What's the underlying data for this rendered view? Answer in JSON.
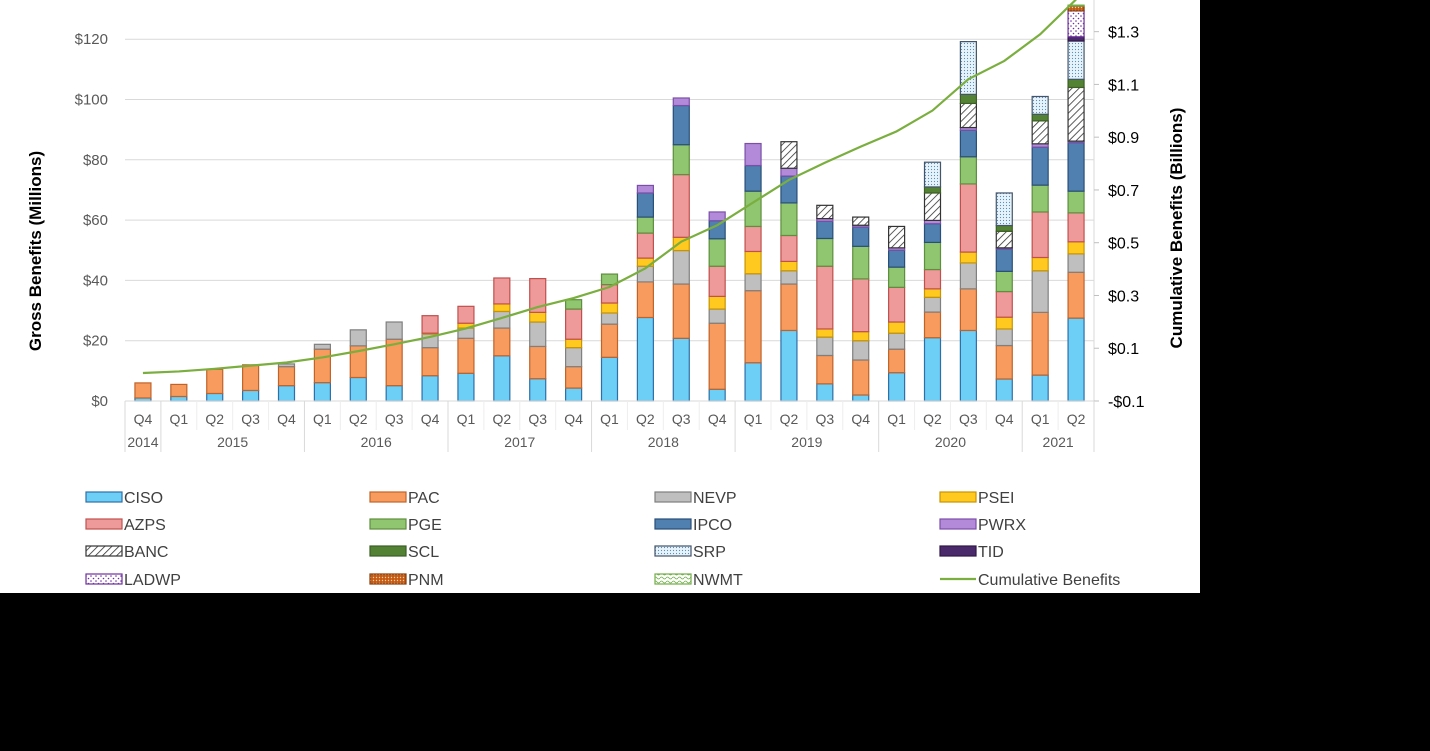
{
  "chart_data": {
    "type": "bar",
    "stacked": true,
    "ylabel": "Gross Benefits (Millions)",
    "y2label": "Cumulative Benefits (Billions)",
    "ylim": [
      0,
      133
    ],
    "y2lim": [
      -0.1,
      1.42
    ],
    "yticks": [
      0,
      20,
      40,
      60,
      80,
      100,
      120
    ],
    "ytick_labels": [
      "$0",
      "$20",
      "$40",
      "$60",
      "$80",
      "$100",
      "$120"
    ],
    "y2ticks": [
      -0.1,
      0.1,
      0.3,
      0.5,
      0.7,
      0.9,
      1.1,
      1.3
    ],
    "y2tick_labels": [
      "-$0.1",
      "$0.1",
      "$0.3",
      "$0.5",
      "$0.7",
      "$0.9",
      "$1.1",
      "$1.3"
    ],
    "grid": true,
    "legend_placement": "bottom",
    "categories": [
      "Q4",
      "Q1",
      "Q2",
      "Q3",
      "Q4",
      "Q1",
      "Q2",
      "Q3",
      "Q4",
      "Q1",
      "Q2",
      "Q3",
      "Q4",
      "Q1",
      "Q2",
      "Q3",
      "Q4",
      "Q1",
      "Q2",
      "Q3",
      "Q4",
      "Q1",
      "Q2",
      "Q3",
      "Q4",
      "Q1",
      "Q2"
    ],
    "year_groups": [
      {
        "label": "2014",
        "count": 1
      },
      {
        "label": "2015",
        "count": 4
      },
      {
        "label": "2016",
        "count": 4
      },
      {
        "label": "2017",
        "count": 4
      },
      {
        "label": "2018",
        "count": 4
      },
      {
        "label": "2019",
        "count": 4
      },
      {
        "label": "2020",
        "count": 4
      },
      {
        "label": "2021",
        "count": 2
      }
    ],
    "series": [
      {
        "name": "CISO",
        "color": "#6DCFF6",
        "stroke": "#2F6FA8",
        "pattern": "solid",
        "values": [
          1,
          1.5,
          2.5,
          3.5,
          5.1,
          6.1,
          7.8,
          5.1,
          8.4,
          9.2,
          15,
          7.4,
          4.3,
          14.5,
          27.7,
          20.8,
          3.9,
          12.7,
          23.4,
          5.7,
          2,
          9.4,
          21,
          23.4,
          7.3,
          8.6,
          27.5
        ]
      },
      {
        "name": "PAC",
        "color": "#F79B5E",
        "stroke": "#C0632A",
        "pattern": "solid",
        "values": [
          5,
          4,
          8,
          8.5,
          6.3,
          11.1,
          10.5,
          15.4,
          9.3,
          11.6,
          9.2,
          10.7,
          7.1,
          11,
          11.8,
          18,
          21.9,
          23.9,
          15.4,
          9.4,
          11.6,
          7.8,
          8.5,
          13.8,
          11.1,
          20.8,
          15.2
        ]
      },
      {
        "name": "NEVP",
        "color": "#BFBFBF",
        "stroke": "#7F7F7F",
        "pattern": "solid",
        "values": [
          0,
          0,
          0,
          0,
          0.9,
          1.6,
          5.3,
          5.7,
          4.5,
          3.4,
          5.5,
          8.1,
          6.3,
          3.7,
          5.2,
          11.1,
          4.7,
          5.6,
          4.4,
          6.1,
          6.4,
          5.3,
          4.9,
          8.6,
          5.5,
          13.8,
          6.1
        ]
      },
      {
        "name": "PSEI",
        "color": "#FFC91F",
        "stroke": "#C89400",
        "pattern": "solid",
        "values": [
          0,
          0,
          0,
          0,
          0,
          0,
          0,
          0,
          0.3,
          1.6,
          2.5,
          3.2,
          2.8,
          3.3,
          2.7,
          4.4,
          4.2,
          7.4,
          3.1,
          2.7,
          3,
          3.7,
          2.8,
          3.6,
          3.9,
          4.4,
          4
        ]
      },
      {
        "name": "AZPS",
        "color": "#EE9A9A",
        "stroke": "#C0504D",
        "pattern": "solid",
        "values": [
          0,
          0,
          0,
          0,
          0,
          0,
          0,
          0,
          5.8,
          5.6,
          8.6,
          11.2,
          10,
          6.1,
          8.3,
          20.8,
          10,
          8.3,
          8.6,
          20.8,
          17.5,
          11.5,
          6.4,
          22.6,
          8.5,
          15.1,
          9.6
        ]
      },
      {
        "name": "PGE",
        "color": "#8FC66F",
        "stroke": "#5E8E3E",
        "pattern": "solid",
        "values": [
          0,
          0,
          0,
          0,
          0,
          0,
          0,
          0,
          0,
          0,
          0,
          0,
          3.1,
          3.5,
          5.3,
          9.9,
          9.1,
          11.7,
          10.8,
          9.2,
          10.8,
          6.7,
          9,
          9,
          6.7,
          8.9,
          7.2
        ]
      },
      {
        "name": "IPCO",
        "color": "#4F80B0",
        "stroke": "#2A4E78",
        "pattern": "solid",
        "values": [
          0,
          0,
          0,
          0,
          0,
          0,
          0,
          0,
          0,
          0,
          0,
          0,
          0,
          0,
          8,
          13,
          6,
          8.5,
          8.9,
          5.7,
          6.4,
          5.6,
          6.2,
          8.8,
          7.4,
          12.6,
          16.1
        ]
      },
      {
        "name": "PWRX",
        "color": "#B38AD9",
        "stroke": "#7B4FA8",
        "pattern": "solid",
        "values": [
          0,
          0,
          0,
          0,
          0,
          0,
          0,
          0,
          0,
          0,
          0,
          0,
          0,
          0,
          2.5,
          2.5,
          2.9,
          7.3,
          2.6,
          0.9,
          0.6,
          0.8,
          1.1,
          0.9,
          0.4,
          1.1,
          0.5
        ]
      },
      {
        "name": "BANC",
        "color": "#FFFFFF",
        "stroke": "#333333",
        "pattern": "hatch",
        "values": [
          0,
          0,
          0,
          0,
          0,
          0,
          0,
          0,
          0,
          0,
          0,
          0,
          0,
          0,
          0,
          0,
          0,
          0,
          8.8,
          4.4,
          2.7,
          7.1,
          9.1,
          8,
          5.5,
          7.6,
          17.8
        ]
      },
      {
        "name": "SCL",
        "color": "#548235",
        "stroke": "#3B5E24",
        "pattern": "solid",
        "values": [
          0,
          0,
          0,
          0,
          0,
          0,
          0,
          0,
          0,
          0,
          0,
          0,
          0,
          0,
          0,
          0,
          0,
          0,
          0,
          0,
          0,
          0,
          2,
          3,
          1.9,
          2.2,
          2.7
        ]
      },
      {
        "name": "SRP",
        "color": "#DDEFF8",
        "stroke": "#44546A",
        "pattern": "dots",
        "values": [
          0,
          0,
          0,
          0,
          0,
          0,
          0,
          0,
          0,
          0,
          0,
          0,
          0,
          0,
          0,
          0,
          0,
          0,
          0,
          0,
          0,
          0,
          8.2,
          17.5,
          10.8,
          5.9,
          12.7
        ]
      },
      {
        "name": "TID",
        "color": "#4B2A6B",
        "stroke": "#2E1846",
        "pattern": "solid",
        "values": [
          0,
          0,
          0,
          0,
          0,
          0,
          0,
          0,
          0,
          0,
          0,
          0,
          0,
          0,
          0,
          0,
          0,
          0,
          0,
          0,
          0,
          0,
          0,
          0,
          0,
          0,
          1.4
        ]
      },
      {
        "name": "LADWP",
        "color": "#FFFFFF",
        "stroke": "#7030A0",
        "pattern": "purpledots",
        "values": [
          0,
          0,
          0,
          0,
          0,
          0,
          0,
          0,
          0,
          0,
          0,
          0,
          0,
          0,
          0,
          0,
          0,
          0,
          0,
          0,
          0,
          0,
          0,
          0,
          0,
          0,
          8.6
        ]
      },
      {
        "name": "PNM",
        "color": "#C55A11",
        "stroke": "#843C0C",
        "pattern": "orangedots",
        "values": [
          0,
          0,
          0,
          0,
          0,
          0,
          0,
          0,
          0,
          0,
          0,
          0,
          0,
          0,
          0,
          0,
          0,
          0,
          0,
          0,
          0,
          0,
          0,
          0,
          0,
          0,
          1.6
        ]
      },
      {
        "name": "NWMT",
        "color": "#E2F0D9",
        "stroke": "#70AD47",
        "pattern": "wave",
        "values": [
          0,
          0,
          0,
          0,
          0,
          0,
          0,
          0,
          0,
          0,
          0,
          0,
          0,
          0,
          0,
          0,
          0,
          0,
          0,
          0,
          0,
          0,
          0,
          0,
          0,
          0,
          0.3
        ]
      }
    ],
    "line_series": {
      "name": "Cumulative Benefits",
      "color": "#7AAE3E",
      "axis": "right",
      "values": [
        0.006,
        0.012,
        0.022,
        0.034,
        0.046,
        0.065,
        0.089,
        0.115,
        0.143,
        0.175,
        0.215,
        0.256,
        0.29,
        0.332,
        0.403,
        0.504,
        0.566,
        0.652,
        0.738,
        0.803,
        0.864,
        0.922,
        1.001,
        1.12,
        1.189,
        1.29,
        1.422
      ]
    }
  }
}
